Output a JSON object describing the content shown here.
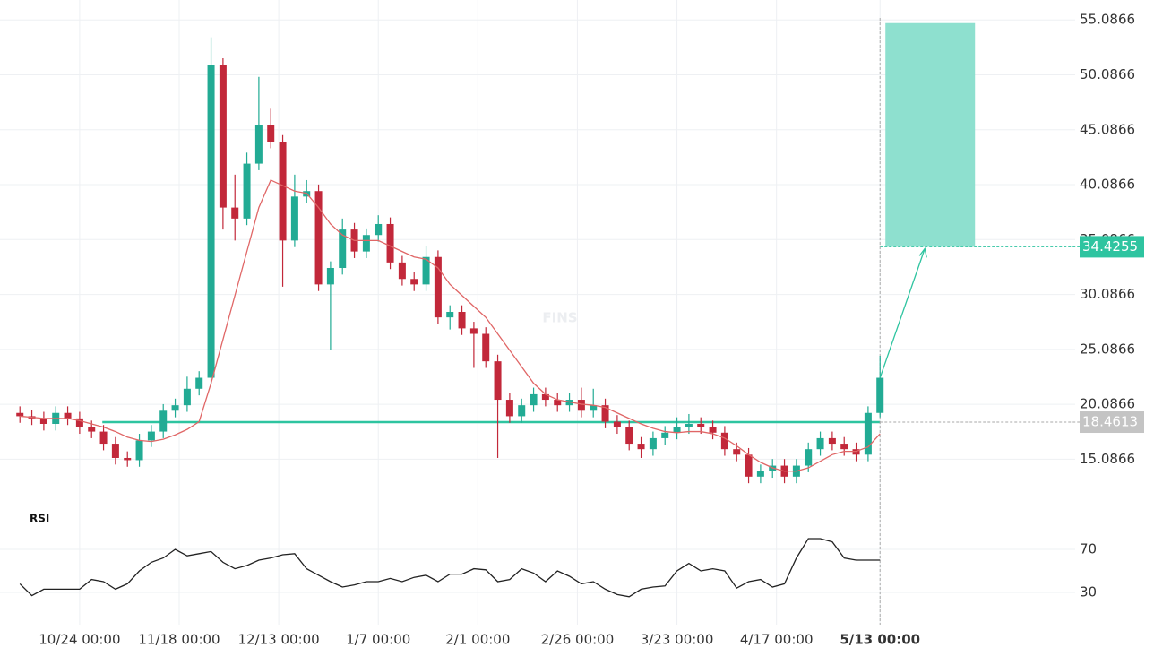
{
  "chart_data": [
    {
      "type": "candlestick",
      "watermark": "FINS",
      "x": [
        -15,
        -12,
        -9,
        -6,
        -3,
        0,
        3,
        6,
        9,
        12,
        15,
        18,
        21,
        24,
        27,
        30,
        33,
        36,
        39,
        42,
        45,
        48,
        51,
        54,
        57,
        60,
        63,
        66,
        69,
        72,
        75,
        78,
        81,
        84,
        87,
        90,
        93,
        96,
        99,
        102,
        105,
        108,
        111,
        114,
        117,
        120,
        123,
        126,
        129,
        132,
        135,
        138,
        141,
        144,
        147,
        150,
        153,
        156,
        159,
        162,
        165,
        168,
        171,
        174,
        177,
        180,
        183,
        186,
        189,
        192,
        195,
        198,
        201
      ],
      "open": [
        19.3,
        19.0,
        18.8,
        18.3,
        19.3,
        18.8,
        18.0,
        17.6,
        16.5,
        15.2,
        15.0,
        16.8,
        17.6,
        19.5,
        20.0,
        21.5,
        22.5,
        51.0,
        38.0,
        37.0,
        42.0,
        45.5,
        44.0,
        35.0,
        39.0,
        39.5,
        31.0,
        32.5,
        36.0,
        34.0,
        35.5,
        36.5,
        33.0,
        31.5,
        31.0,
        33.5,
        28.0,
        28.5,
        27.0,
        26.5,
        24.0,
        20.5,
        19.0,
        20.0,
        21.0,
        20.5,
        20.0,
        20.5,
        19.5,
        20.0,
        18.5,
        18.0,
        16.5,
        16.0,
        17.0,
        17.5,
        18.0,
        18.3,
        18.0,
        17.5,
        16.0,
        15.5,
        13.5,
        14.0,
        14.5,
        13.5,
        14.5,
        16.0,
        17.0,
        16.5,
        16.0,
        15.5,
        19.3
      ],
      "high": [
        19.9,
        19.6,
        19.4,
        19.9,
        19.9,
        19.4,
        18.6,
        18.2,
        17.1,
        15.8,
        17.4,
        18.2,
        20.1,
        20.6,
        22.6,
        23.1,
        53.5,
        51.6,
        41.0,
        43.0,
        49.9,
        47.0,
        44.6,
        41.0,
        40.5,
        40.1,
        33.1,
        37.0,
        36.6,
        36.1,
        37.3,
        37.1,
        33.6,
        32.1,
        34.5,
        34.1,
        29.1,
        29.1,
        27.6,
        27.1,
        24.6,
        21.1,
        20.6,
        21.6,
        21.6,
        21.1,
        21.1,
        21.6,
        21.5,
        20.6,
        19.1,
        18.6,
        17.1,
        17.6,
        18.1,
        18.9,
        19.2,
        18.9,
        18.6,
        18.1,
        16.6,
        16.1,
        14.6,
        15.1,
        15.1,
        15.1,
        16.6,
        17.6,
        17.6,
        17.1,
        16.6,
        19.9,
        24.5
      ],
      "low": [
        18.4,
        18.2,
        17.7,
        17.7,
        18.2,
        17.4,
        17.0,
        15.9,
        14.6,
        14.4,
        14.4,
        16.2,
        17.0,
        18.9,
        19.4,
        20.9,
        21.9,
        36.0,
        35.0,
        36.4,
        41.4,
        43.4,
        30.8,
        34.4,
        38.4,
        30.4,
        25.0,
        31.9,
        33.4,
        33.4,
        34.9,
        32.4,
        30.9,
        30.4,
        30.4,
        27.4,
        26.9,
        26.4,
        23.4,
        23.4,
        15.2,
        18.4,
        18.4,
        19.4,
        19.9,
        19.4,
        19.4,
        18.9,
        18.9,
        17.9,
        17.4,
        15.9,
        15.2,
        15.4,
        16.4,
        16.9,
        17.4,
        17.4,
        16.9,
        15.4,
        14.9,
        12.9,
        12.9,
        13.4,
        12.9,
        12.9,
        13.9,
        15.4,
        15.9,
        15.4,
        14.9,
        14.9,
        18.9
      ],
      "close": [
        19.0,
        18.8,
        18.3,
        19.3,
        18.8,
        18.0,
        17.6,
        16.5,
        15.2,
        15.0,
        16.8,
        17.6,
        19.5,
        20.0,
        21.5,
        22.5,
        51.0,
        38.0,
        37.0,
        42.0,
        45.5,
        44.0,
        35.0,
        39.0,
        39.5,
        31.0,
        32.5,
        36.0,
        34.0,
        35.5,
        36.5,
        33.0,
        31.5,
        31.0,
        33.5,
        28.0,
        28.5,
        27.0,
        26.5,
        24.0,
        20.5,
        19.0,
        20.0,
        21.0,
        20.5,
        20.0,
        20.5,
        19.5,
        20.0,
        18.5,
        18.0,
        16.5,
        16.0,
        17.0,
        17.5,
        18.0,
        18.3,
        18.0,
        17.5,
        16.0,
        15.5,
        13.5,
        14.0,
        14.5,
        13.5,
        14.5,
        16.0,
        17.0,
        16.5,
        16.0,
        15.5,
        19.3,
        22.5
      ],
      "up_color": "#22ab94",
      "down_color": "#c2283a",
      "ma": {
        "color": "#e06666",
        "values": [
          19.0,
          18.9,
          18.8,
          18.8,
          18.8,
          18.6,
          18.3,
          18.0,
          17.6,
          17.1,
          16.8,
          16.7,
          16.9,
          17.3,
          17.8,
          18.5,
          22,
          26,
          30,
          34,
          38,
          40.5,
          40,
          39.5,
          39.3,
          38,
          36.5,
          35.5,
          35,
          35,
          35,
          34.5,
          34,
          33.5,
          33.3,
          32.5,
          31,
          30,
          29,
          28,
          26.5,
          25,
          23.5,
          22,
          21,
          20.5,
          20.3,
          20.1,
          20,
          19.8,
          19.3,
          18.8,
          18.3,
          17.9,
          17.6,
          17.5,
          17.6,
          17.6,
          17.4,
          17,
          16.3,
          15.5,
          14.8,
          14.3,
          14,
          14,
          14.3,
          14.9,
          15.5,
          15.8,
          15.8,
          16.2,
          17.4
        ]
      },
      "current_price": 18.4613,
      "target_price": 34.4255,
      "target_zone": [
        34.4255,
        54.8
      ],
      "target_color": "#8ee0cf",
      "level_color": "#2ec4a0",
      "xlim": [
        -20,
        250
      ],
      "ylim": [
        11.2,
        56.9
      ],
      "yticks": [
        15.0866,
        20.0866,
        25.0866,
        30.0866,
        35.0866,
        40.0866,
        45.0866,
        50.0866,
        55.0866
      ],
      "ytick_labels_hidden": [
        35.0866
      ],
      "xticks": [
        {
          "value": 0,
          "label": "10/24 00:00"
        },
        {
          "value": 25,
          "label": "11/18 00:00"
        },
        {
          "value": 50,
          "label": "12/13 00:00"
        },
        {
          "value": 75,
          "label": "1/7 00:00"
        },
        {
          "value": 100,
          "label": "2/1 00:00"
        },
        {
          "value": 125,
          "label": "2/26 00:00"
        },
        {
          "value": 150,
          "label": "3/23 00:00"
        },
        {
          "value": 175,
          "label": "4/17 00:00"
        },
        {
          "value": 201,
          "label": "5/13 00:00"
        }
      ],
      "grid": true
    },
    {
      "type": "line",
      "title": "RSI",
      "color": "#222",
      "values": [
        38,
        27,
        33,
        33,
        33,
        33,
        42,
        40,
        33,
        38,
        50,
        58,
        62,
        70,
        64,
        66,
        68,
        58,
        52,
        55,
        60,
        62,
        65,
        66,
        52,
        46,
        40,
        35,
        37,
        40,
        40,
        43,
        40,
        44,
        46,
        40,
        47,
        47,
        52,
        51,
        40,
        42,
        52,
        48,
        40,
        50,
        45,
        38,
        40,
        33,
        28,
        26,
        33,
        35,
        36,
        50,
        57,
        50,
        52,
        50,
        34,
        40,
        42,
        35,
        38,
        62,
        80,
        80,
        77,
        62,
        60,
        60,
        60
      ],
      "ylim": [
        0,
        100
      ],
      "yticks": [
        30,
        70
      ],
      "grid": true
    }
  ]
}
